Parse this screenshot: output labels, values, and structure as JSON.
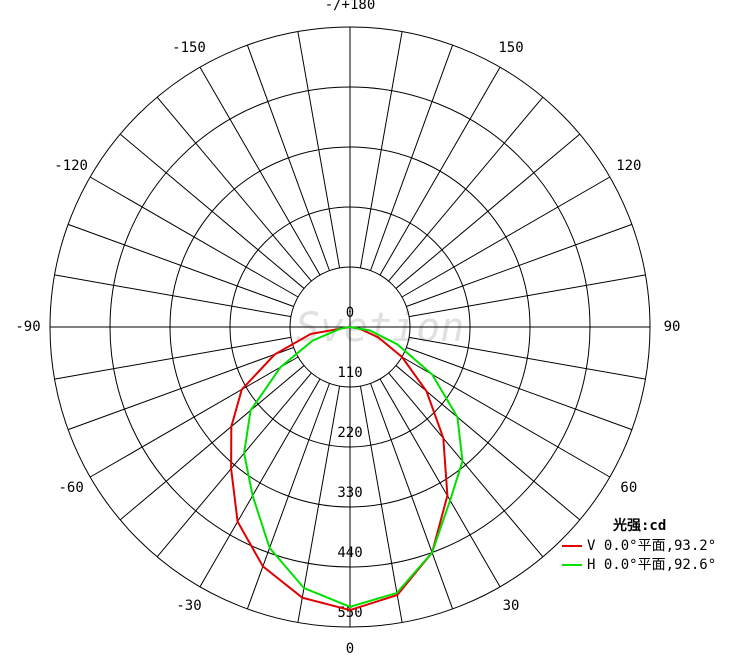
{
  "chart_data": {
    "type": "polar",
    "watermark": "Svetion",
    "rlim": [
      0,
      550
    ],
    "rticks": [
      0,
      110,
      220,
      330,
      440,
      550
    ],
    "angle_ticks": [
      {
        "value": 180,
        "label": "-/+180"
      },
      -150,
      150,
      -120,
      120,
      -90,
      90,
      -60,
      60,
      -30,
      30,
      0
    ],
    "angles": [
      -90,
      -80,
      -70,
      -60,
      -50,
      -40,
      -30,
      -20,
      -10,
      0,
      10,
      20,
      30,
      40,
      50,
      60,
      70,
      80,
      90
    ],
    "legend_title": "光强:cd",
    "series": [
      {
        "name": "V 0.0°平面,93.2°",
        "color": "#e00000",
        "values": [
          0,
          73,
          147,
          229,
          284,
          339,
          412,
          467,
          504,
          519,
          499,
          440,
          357,
          266,
          183,
          110,
          55,
          18,
          0
        ]
      },
      {
        "name": "H 0.0°平面,92.6°",
        "color": "#00e000",
        "values": [
          0,
          18,
          73,
          147,
          238,
          302,
          357,
          431,
          486,
          513,
          495,
          440,
          367,
          321,
          257,
          174,
          92,
          37,
          0
        ]
      }
    ]
  }
}
